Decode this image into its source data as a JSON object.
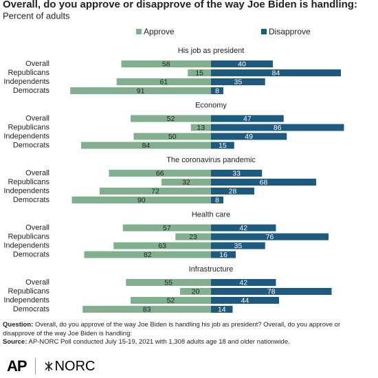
{
  "chart_data": {
    "type": "diverging_bar",
    "title": "Overall, do you approve or disapprove of the way Joe Biden is handling:",
    "subtitle": "Percent of adults",
    "categories": [
      "Overall",
      "Republicans",
      "Independents",
      "Democrats"
    ],
    "series": [
      {
        "name": "Approve",
        "color": "#80b08e"
      },
      {
        "name": "Disapprove",
        "color": "#1d5a80"
      }
    ],
    "panels": [
      {
        "title": "His job as president",
        "values": [
          [
            58,
            15,
            61,
            91
          ],
          [
            40,
            84,
            35,
            8
          ]
        ]
      },
      {
        "title": "Economy",
        "values": [
          [
            52,
            13,
            50,
            84
          ],
          [
            47,
            86,
            49,
            15
          ]
        ]
      },
      {
        "title": "The coronavirus pandemic",
        "values": [
          [
            66,
            32,
            72,
            90
          ],
          [
            33,
            68,
            28,
            8
          ]
        ]
      },
      {
        "title": "Health care",
        "values": [
          [
            57,
            23,
            63,
            82
          ],
          [
            42,
            76,
            35,
            16
          ]
        ]
      },
      {
        "title": "Infrastructure",
        "values": [
          [
            55,
            20,
            52,
            83
          ],
          [
            42,
            78,
            44,
            14
          ]
        ]
      }
    ]
  },
  "footer": {
    "question_label": "Question:",
    "question": "Overall, do you approve of the way Joe Biden is handling his job as president? Overall, do you approve or disapprove of the way Joe Biden is handling:",
    "source_label": "Source:",
    "source": "AP-NORC Poll conducted July 15-19, 2021 with 1,308 adults age 18 and older nationwide.",
    "logo_left": "AP",
    "logo_right": "NORC"
  }
}
